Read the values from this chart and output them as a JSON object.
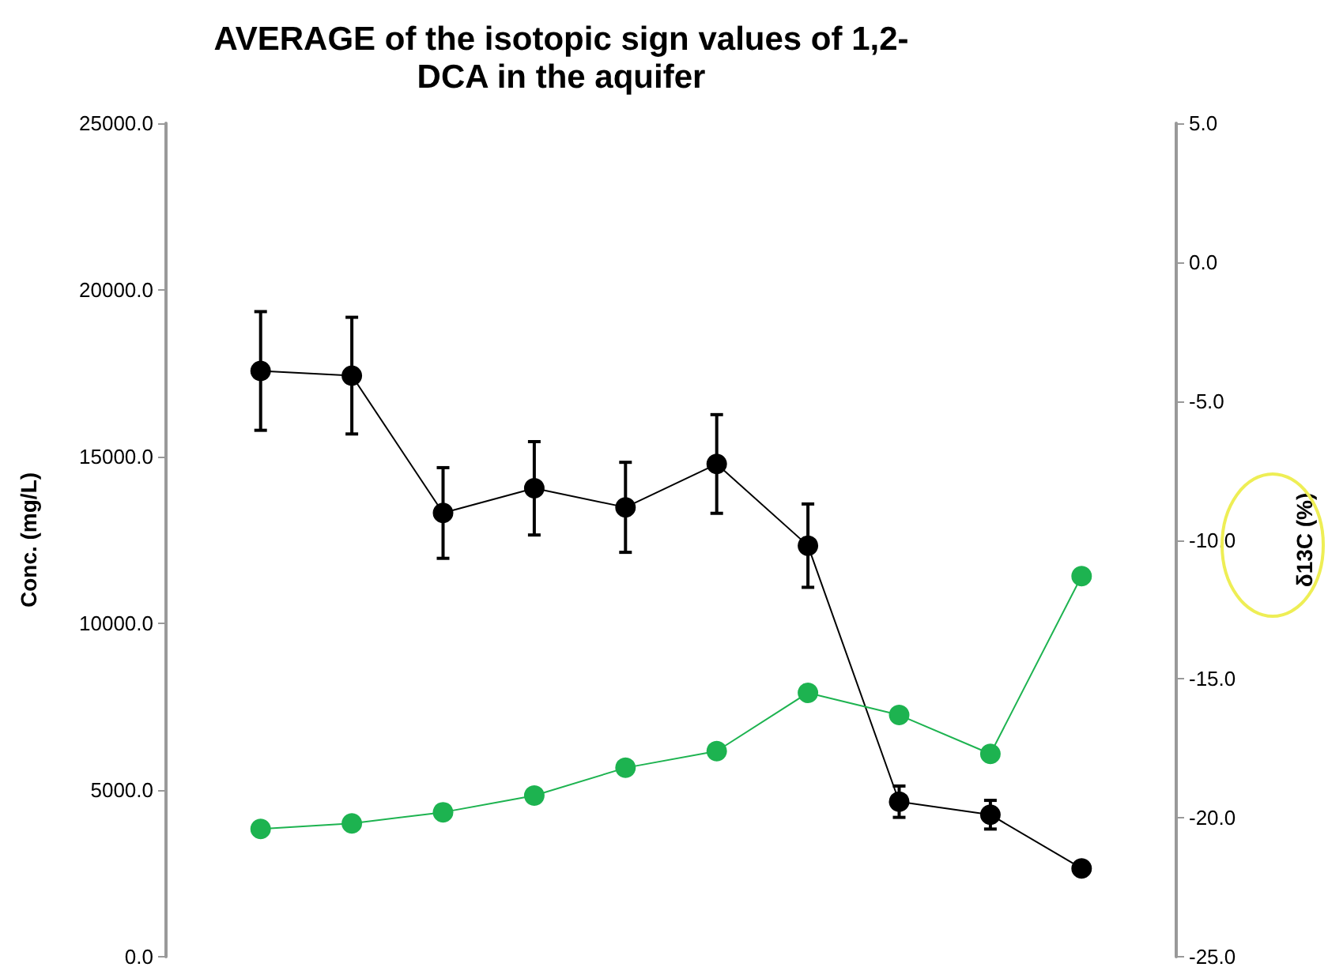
{
  "chart_data": {
    "type": "line",
    "title": "AVERAGE of the isotopic sign values of 1,2-DCA in the aquifer",
    "ylabel": "Conc. (mg/L)",
    "y2label": "δ13C (%)",
    "categories": [
      null,
      null,
      null,
      null,
      null,
      null,
      null,
      null,
      null,
      null
    ],
    "series": [
      {
        "color": "#000000",
        "values": [
          17570,
          17430,
          13310,
          14050,
          13480,
          14780,
          12330,
          4650,
          4260,
          2650
        ],
        "errors": [
          1780,
          1750,
          1360,
          1400,
          1350,
          1480,
          1250,
          470,
          430,
          150
        ]
      },
      {
        "color": "#1db350",
        "axis": "y2",
        "values": [
          -20.4,
          -20.2,
          -19.8,
          -19.2,
          -18.2,
          -17.6,
          -15.5,
          -16.3,
          -17.7,
          -11.3
        ]
      }
    ],
    "ylim": [
      0,
      25000
    ],
    "yticks": [
      {
        "value": 0,
        "label": "0.0"
      },
      {
        "value": 5000,
        "label": "5000.0"
      },
      {
        "value": 10000,
        "label": "10000.0"
      },
      {
        "value": 15000,
        "label": "15000.0"
      },
      {
        "value": 20000,
        "label": "20000.0"
      },
      {
        "value": 25000,
        "label": "25000.0"
      }
    ],
    "y2lim": [
      -25,
      5
    ],
    "y2ticks": [
      {
        "value": -25,
        "label": "-25.0"
      },
      {
        "value": -20,
        "label": "-20.0"
      },
      {
        "value": -15,
        "label": "-15.0"
      },
      {
        "value": -10,
        "label": "-10.0"
      },
      {
        "value": -5,
        "label": "-5.0"
      },
      {
        "value": 0,
        "label": "0.0"
      },
      {
        "value": 5,
        "label": "5.0"
      }
    ],
    "tick_labels": "y",
    "grid": false,
    "marker": "circle",
    "line_style": "solid"
  }
}
